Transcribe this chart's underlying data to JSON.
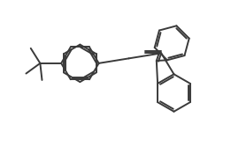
{
  "background_color": "#ffffff",
  "line_color": "#3a3a3a",
  "line_width": 1.4,
  "figsize": [
    2.61,
    1.67
  ],
  "dpi": 100,
  "xlim": [
    0,
    10
  ],
  "ylim": [
    0,
    6.4
  ]
}
